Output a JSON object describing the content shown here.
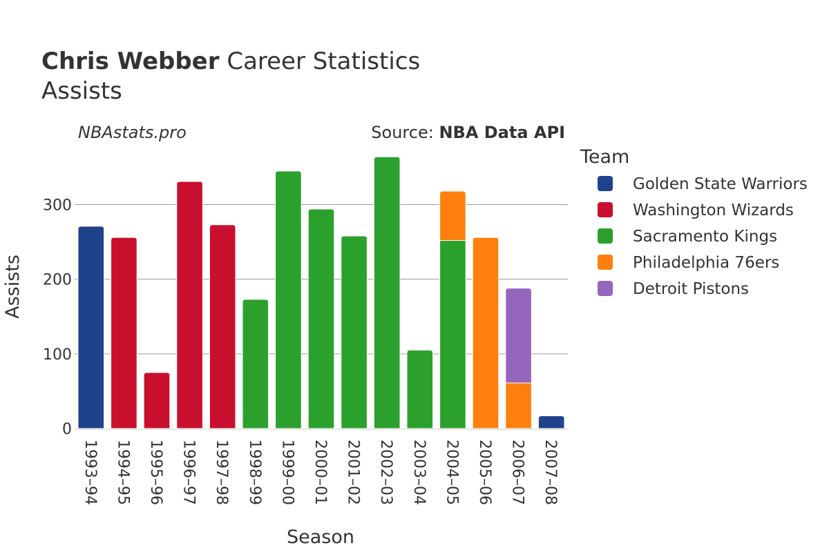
{
  "header": {
    "title_bold": "Chris Webber",
    "title_rest": "Career Statistics",
    "subtitle": "Assists"
  },
  "credits": {
    "site": "NBAstats.pro",
    "source_prefix": "Source: ",
    "source_name": "NBA Data API"
  },
  "chart_data": {
    "type": "bar",
    "stacked": true,
    "xlabel": "Season",
    "ylabel": "Assists",
    "ylim": [
      0,
      380
    ],
    "yticks": [
      0,
      100,
      200,
      300
    ],
    "grid": true,
    "legend_title": "Team",
    "legend_position": "right",
    "categories": [
      "1993–94",
      "1994–95",
      "1995–96",
      "1996–97",
      "1997–98",
      "1998–99",
      "1999–00",
      "2000–01",
      "2001–02",
      "2002–03",
      "2003–04",
      "2004–05",
      "2005–06",
      "2006–07",
      "2007–08"
    ],
    "series": [
      {
        "name": "Golden State Warriors",
        "color": "#1f438a",
        "values": [
          271,
          0,
          0,
          0,
          0,
          0,
          0,
          0,
          0,
          0,
          0,
          0,
          0,
          0,
          17
        ]
      },
      {
        "name": "Washington Wizards",
        "color": "#c8102e",
        "values": [
          0,
          256,
          75,
          331,
          273,
          0,
          0,
          0,
          0,
          0,
          0,
          0,
          0,
          0,
          0
        ]
      },
      {
        "name": "Sacramento Kings",
        "color": "#2ca02c",
        "values": [
          0,
          0,
          0,
          0,
          0,
          173,
          345,
          294,
          258,
          364,
          105,
          252,
          0,
          0,
          0
        ]
      },
      {
        "name": "Philadelphia 76ers",
        "color": "#ff7f0e",
        "values": [
          0,
          0,
          0,
          0,
          0,
          0,
          0,
          0,
          0,
          0,
          0,
          66,
          256,
          61,
          0
        ]
      },
      {
        "name": "Detroit Pistons",
        "color": "#9467bd",
        "values": [
          0,
          0,
          0,
          0,
          0,
          0,
          0,
          0,
          0,
          0,
          0,
          0,
          0,
          127,
          0
        ]
      }
    ]
  }
}
